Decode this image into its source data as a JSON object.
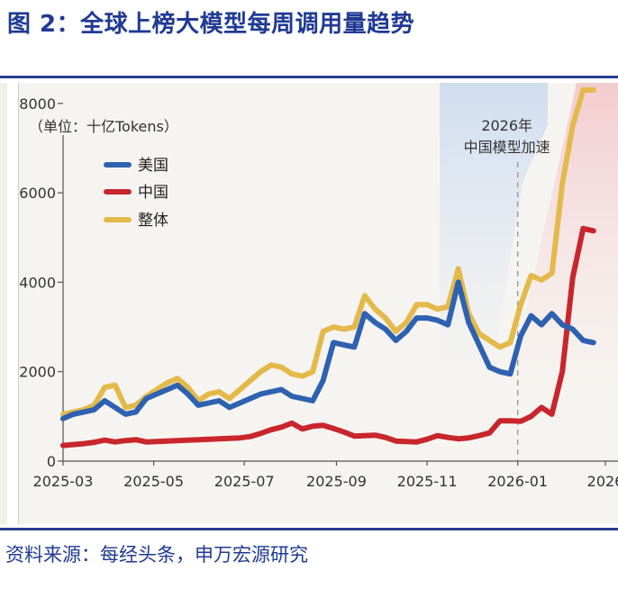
{
  "title": "图 2：全球上榜大模型每周调用量趋势",
  "source": "资料来源：每经头条，申万宏源研究",
  "colors": {
    "accent": "#1f3a93",
    "usa": "#2e62b0",
    "china": "#c8262c",
    "total": "#e3b94a"
  },
  "chart_data": {
    "type": "line",
    "unit_label": "（单位：十亿Tokens）",
    "ylim": [
      0,
      8500
    ],
    "yticks": [
      "0",
      "2000",
      "4000",
      "6000",
      "8000"
    ],
    "x_tick_labels": [
      "2025-03",
      "2025-05",
      "2025-07",
      "2025-09",
      "2025-11",
      "2026-01",
      "2026"
    ],
    "annotation": "2026年\n中国模型加速",
    "legend_position": "top-left",
    "x": [
      "2025-03-01",
      "2025-03-08",
      "2025-03-15",
      "2025-03-22",
      "2025-03-29",
      "2025-04-05",
      "2025-04-12",
      "2025-04-19",
      "2025-04-26",
      "2025-05-03",
      "2025-05-10",
      "2025-05-17",
      "2025-05-24",
      "2025-05-31",
      "2025-06-07",
      "2025-06-14",
      "2025-06-21",
      "2025-06-28",
      "2025-07-05",
      "2025-07-12",
      "2025-07-19",
      "2025-07-26",
      "2025-08-02",
      "2025-08-09",
      "2025-08-16",
      "2025-08-23",
      "2025-08-30",
      "2025-09-06",
      "2025-09-13",
      "2025-09-20",
      "2025-09-27",
      "2025-10-04",
      "2025-10-11",
      "2025-10-18",
      "2025-10-25",
      "2025-11-01",
      "2025-11-08",
      "2025-11-15",
      "2025-11-22",
      "2025-11-29",
      "2025-12-06",
      "2025-12-13",
      "2025-12-20",
      "2025-12-27",
      "2026-01-03",
      "2026-01-10",
      "2026-01-17",
      "2026-01-24",
      "2026-01-31",
      "2026-02-07",
      "2026-02-14",
      "2026-02-21"
    ],
    "series": [
      {
        "name": "美国",
        "color": "#2e62b0",
        "values": [
          950,
          1050,
          1100,
          1150,
          1350,
          1200,
          1050,
          1100,
          1400,
          1500,
          1600,
          1700,
          1500,
          1250,
          1300,
          1350,
          1200,
          1300,
          1400,
          1500,
          1550,
          1600,
          1450,
          1400,
          1350,
          1800,
          2650,
          2600,
          2550,
          3300,
          3100,
          2950,
          2700,
          2900,
          3200,
          3200,
          3150,
          3050,
          4000,
          3100,
          2600,
          2100,
          2000,
          1950,
          2800,
          3250,
          3050,
          3300,
          3050,
          2950,
          2700,
          2650
        ]
      },
      {
        "name": "中国",
        "color": "#c8262c",
        "values": [
          350,
          370,
          390,
          420,
          470,
          430,
          460,
          480,
          430,
          440,
          450,
          460,
          470,
          480,
          490,
          500,
          510,
          520,
          550,
          620,
          700,
          760,
          850,
          720,
          780,
          800,
          730,
          650,
          560,
          570,
          580,
          530,
          450,
          440,
          430,
          490,
          570,
          530,
          500,
          520,
          570,
          630,
          900,
          900,
          890,
          1000,
          1200,
          1050,
          2000,
          4100,
          5200,
          5150
        ]
      },
      {
        "name": "整体",
        "color": "#e3b94a",
        "values": [
          1050,
          1100,
          1150,
          1250,
          1650,
          1700,
          1200,
          1250,
          1450,
          1600,
          1750,
          1850,
          1650,
          1350,
          1500,
          1550,
          1400,
          1600,
          1800,
          2000,
          2150,
          2100,
          1950,
          1900,
          2000,
          2900,
          3000,
          2950,
          3000,
          3700,
          3400,
          3200,
          2900,
          3100,
          3500,
          3500,
          3400,
          3450,
          4300,
          3300,
          2850,
          2700,
          2550,
          2650,
          3500,
          4150,
          4050,
          4200,
          6200,
          7500,
          8300,
          8300
        ]
      }
    ]
  }
}
